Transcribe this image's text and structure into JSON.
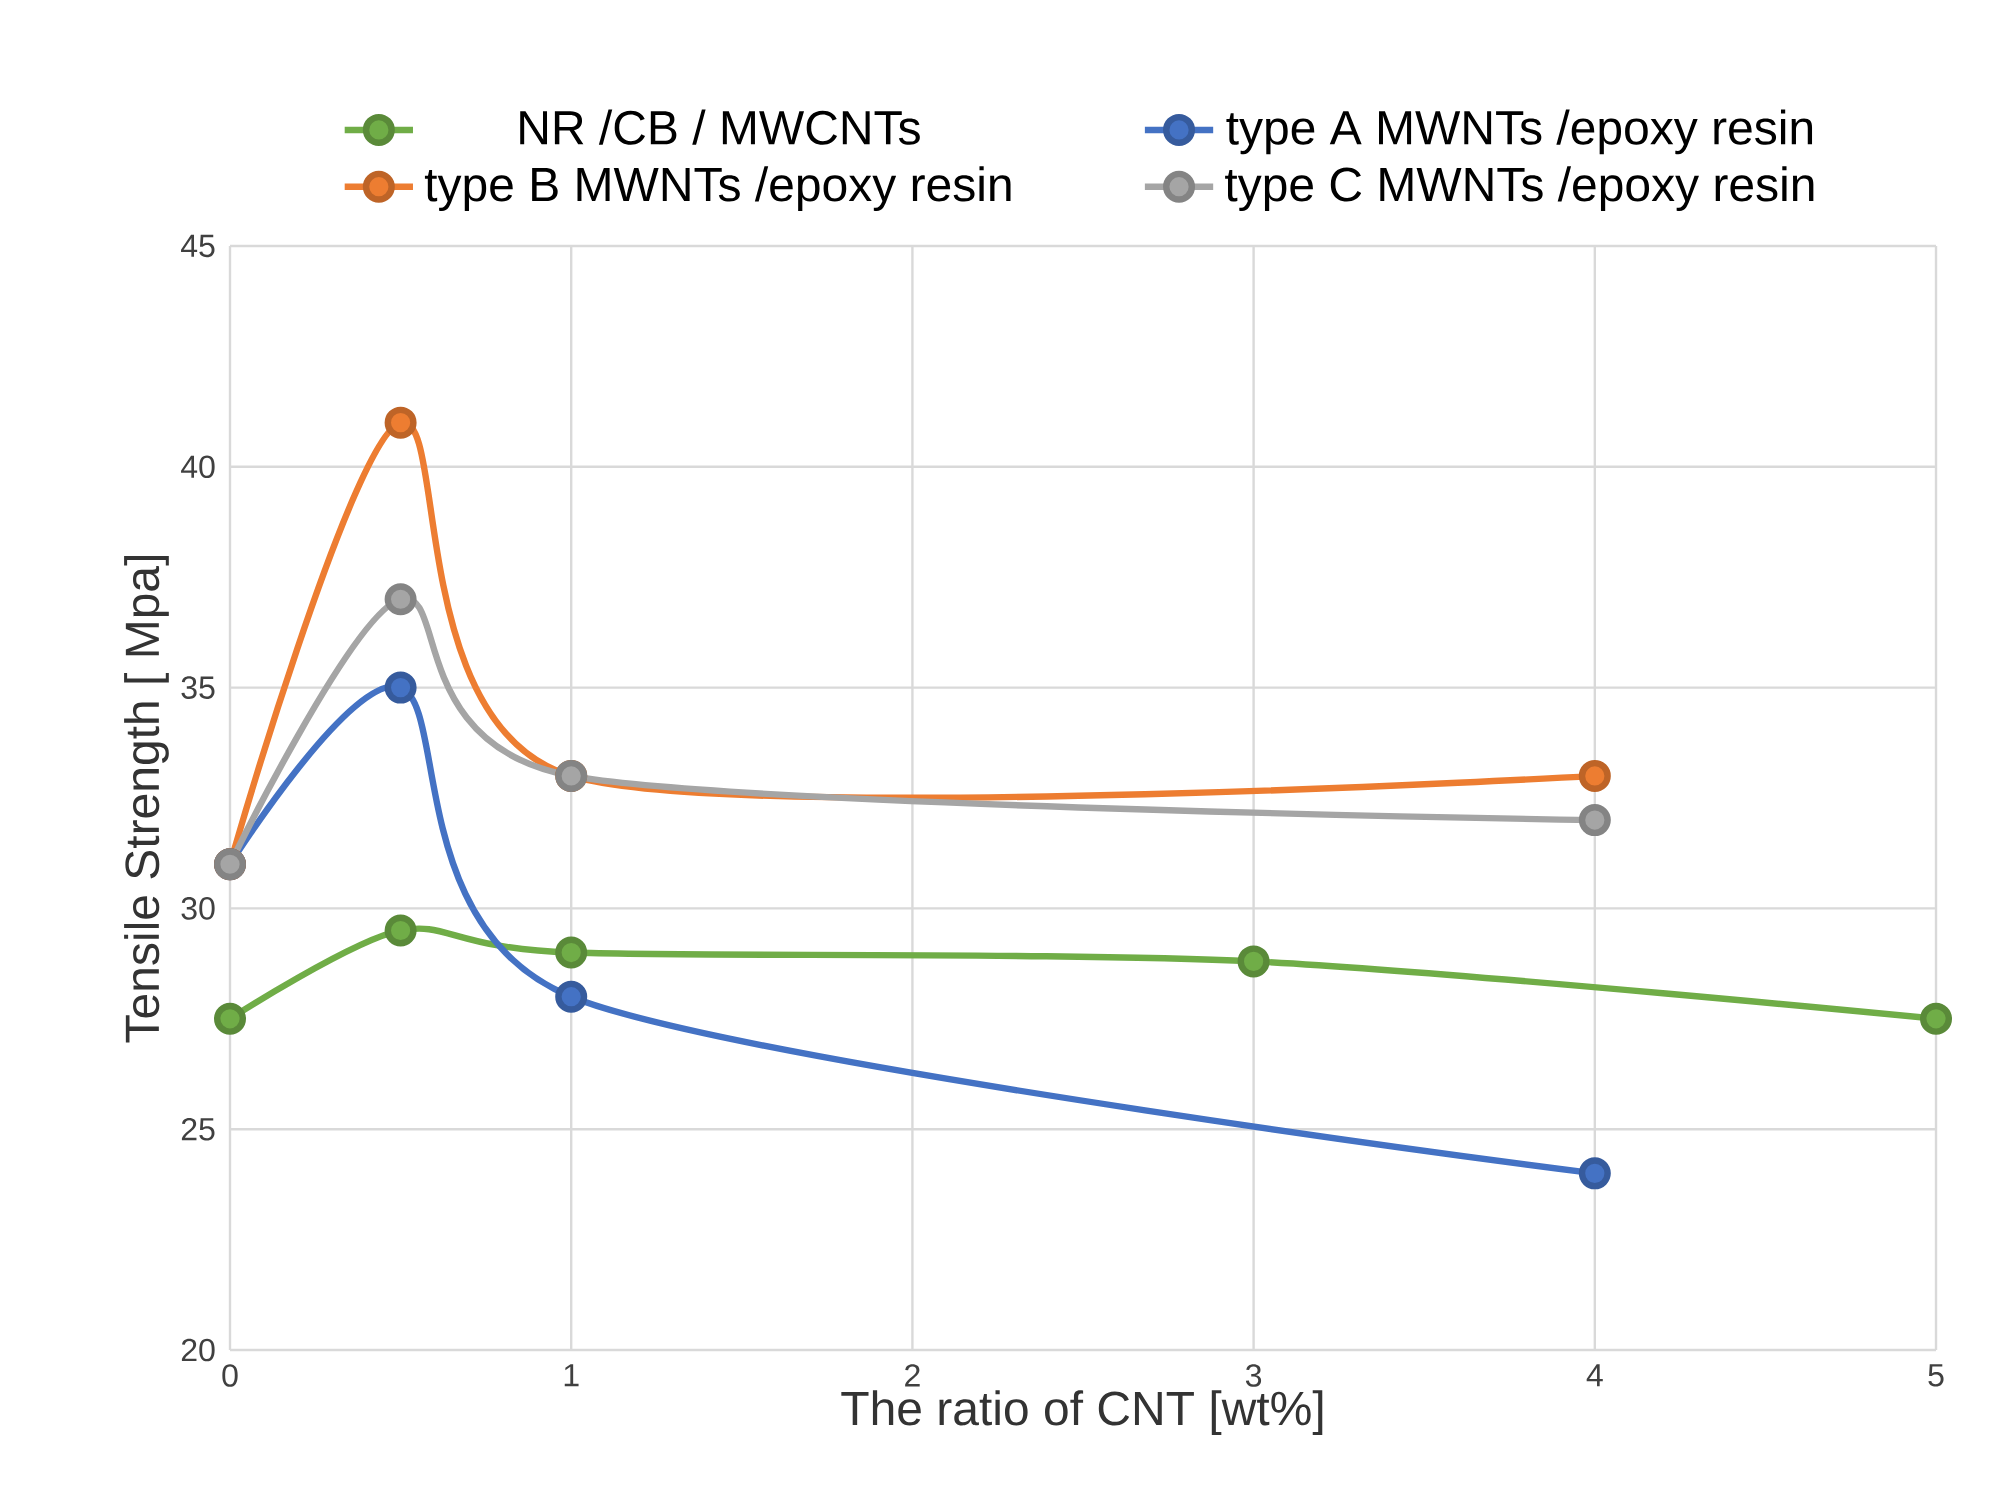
{
  "chart_data": {
    "type": "line",
    "xlabel": "The ratio of CNT [wt%]",
    "ylabel": "Tensile Strength [ Mpa]",
    "xlim": [
      0,
      5
    ],
    "ylim": [
      20,
      45
    ],
    "xticks": [
      0,
      1,
      2,
      3,
      4,
      5
    ],
    "yticks": [
      20,
      25,
      30,
      35,
      40,
      45
    ],
    "grid": true,
    "legend": "top",
    "marker": "circle",
    "line_style": "solid",
    "series": [
      {
        "name": "NR /CB / MWCNTs",
        "color": "#70ad47",
        "x": [
          0,
          0.5,
          1,
          3,
          5
        ],
        "values": [
          27.5,
          29.5,
          29,
          28.8,
          27.5
        ]
      },
      {
        "name": "type A MWNTs /epoxy resin",
        "color": "#4472c4",
        "x": [
          0,
          0.5,
          1,
          4
        ],
        "values": [
          31,
          35,
          28,
          24
        ]
      },
      {
        "name": "type B MWNTs /epoxy resin",
        "color": "#ed7d31",
        "x": [
          0,
          0.5,
          1,
          4
        ],
        "values": [
          31,
          41,
          33,
          33
        ]
      },
      {
        "name": "type C MWNTs /epoxy resin",
        "color": "#a5a5a5",
        "x": [
          0,
          0.5,
          1,
          4
        ],
        "values": [
          31,
          37,
          33,
          32
        ]
      }
    ]
  }
}
